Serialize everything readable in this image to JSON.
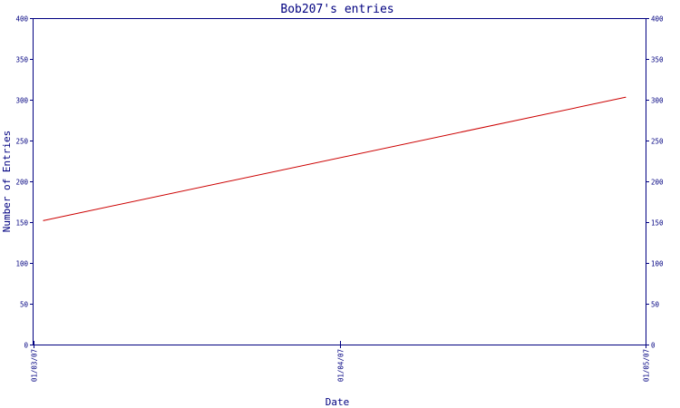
{
  "chart_data": {
    "type": "line",
    "title": "Bob207's entries",
    "xlabel": "Date",
    "ylabel": "Number of Entries",
    "x_ticks": [
      "01/03/07",
      "01/04/07",
      "01/05/07"
    ],
    "ylim": [
      0,
      400
    ],
    "y_ticks": [
      0,
      50,
      100,
      150,
      200,
      250,
      300,
      350,
      400
    ],
    "grid": false,
    "series": [
      {
        "color": "#cc0000",
        "points": [
          {
            "x": "2007-03-02",
            "y": 152
          },
          {
            "x": "2007-04-29",
            "y": 303
          }
        ]
      }
    ]
  },
  "colors": {
    "axis": "#000080",
    "series": "#cc0000",
    "background": "#ffffff"
  }
}
